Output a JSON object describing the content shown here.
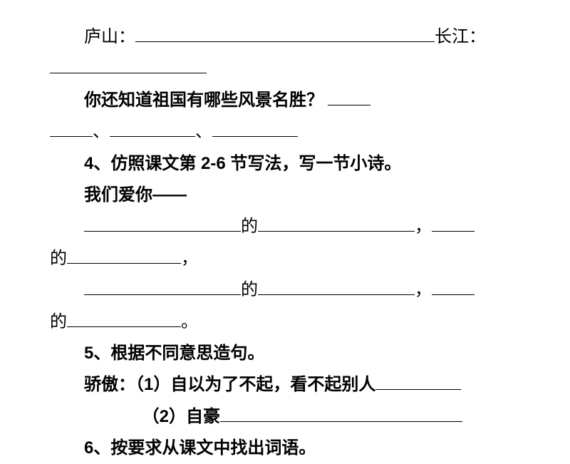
{
  "doc": {
    "line1_a": "庐山：",
    "line1_b": "长江：",
    "line3": "你还知道祖国有哪些风景名胜？",
    "sep1": "、",
    "sep2": "、",
    "q4": "4、仿照课文第 2-6 节写法，写一节小诗。",
    "q4_prefix": "我们爱你——",
    "de": "的",
    "comma": "，",
    "period": "。",
    "q5": "5、根据不同意思造句。",
    "q5_word": "骄傲：",
    "q5_1": "（1）自以为了不起，看不起别人",
    "q5_2": "（2）自豪",
    "q6": "6、按要求从课文中找出词语。"
  },
  "style": {
    "fontsize": 24,
    "text_color": "#000000",
    "background_color": "#ffffff",
    "line_height": 1.85,
    "blank_border": "1.5px solid #000"
  }
}
